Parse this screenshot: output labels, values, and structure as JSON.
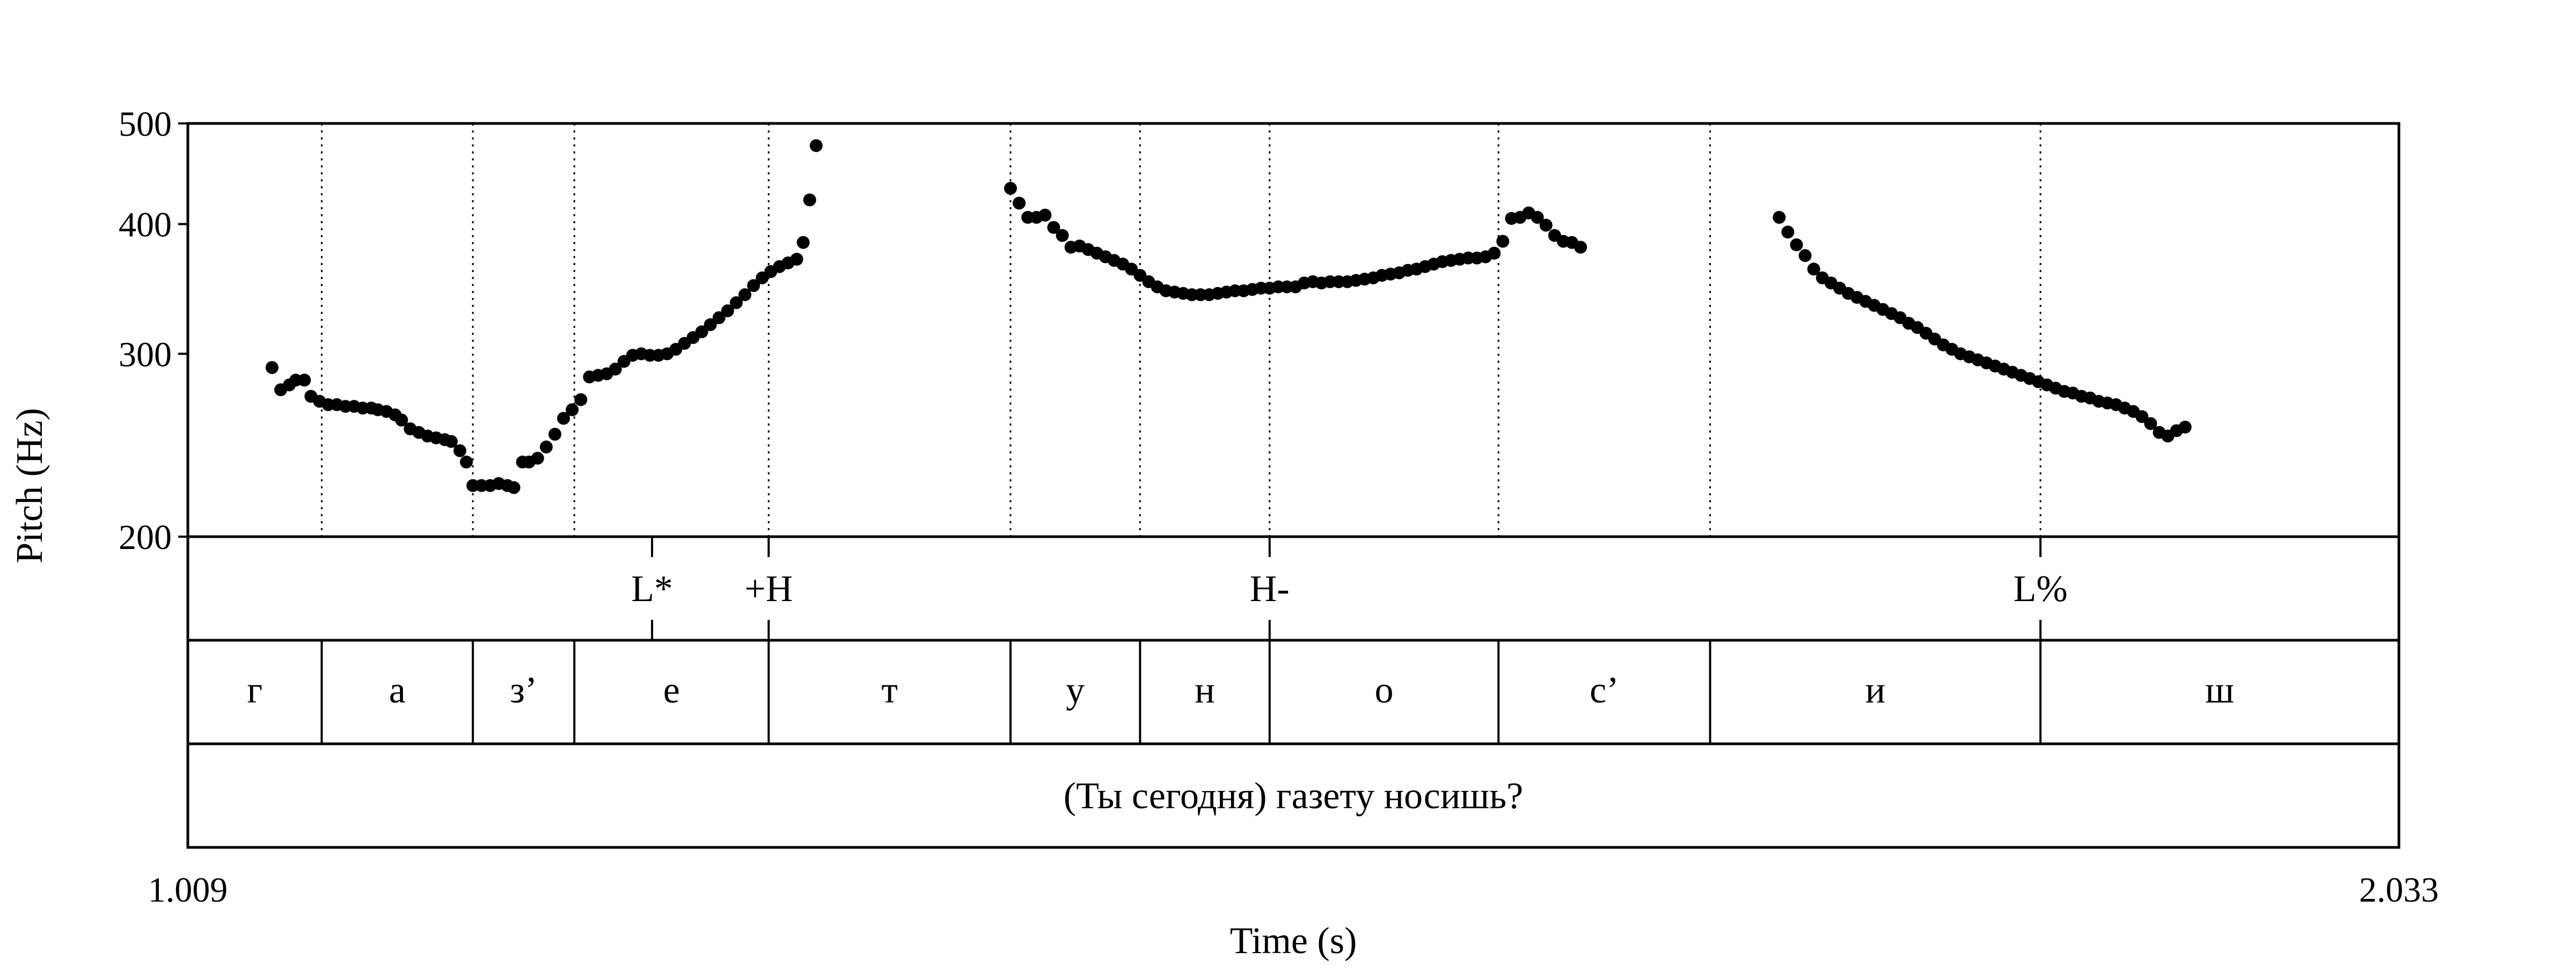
{
  "chart_data": {
    "type": "scatter",
    "x_range": [
      1.009,
      2.033
    ],
    "y_range": [
      200,
      500
    ],
    "y_scale": "log",
    "xlabel": "Time (s)",
    "ylabel": "Pitch (Hz)",
    "x_ticks": [
      "1.009",
      "2.033"
    ],
    "y_ticks": [
      500,
      400,
      300,
      200
    ],
    "y_tick_labels": [
      "500",
      "400",
      "300",
      "200"
    ],
    "grid": false,
    "pitch_points": [
      [
        1.048,
        291
      ],
      [
        1.052,
        277
      ],
      [
        1.056,
        280
      ],
      [
        1.059,
        283
      ],
      [
        1.063,
        283
      ],
      [
        1.066,
        273
      ],
      [
        1.07,
        270
      ],
      [
        1.074,
        268
      ],
      [
        1.078,
        268
      ],
      [
        1.082,
        267
      ],
      [
        1.086,
        267
      ],
      [
        1.09,
        266
      ],
      [
        1.094,
        266
      ],
      [
        1.097,
        265
      ],
      [
        1.101,
        264
      ],
      [
        1.105,
        262
      ],
      [
        1.108,
        259
      ],
      [
        1.112,
        254
      ],
      [
        1.116,
        252
      ],
      [
        1.12,
        250
      ],
      [
        1.124,
        249
      ],
      [
        1.128,
        248
      ],
      [
        1.131,
        247
      ],
      [
        1.135,
        242
      ],
      [
        1.138,
        236
      ],
      [
        1.141,
        224
      ],
      [
        1.145,
        224
      ],
      [
        1.149,
        224
      ],
      [
        1.153,
        225
      ],
      [
        1.157,
        224
      ],
      [
        1.16,
        223
      ],
      [
        1.164,
        236
      ],
      [
        1.167,
        236
      ],
      [
        1.171,
        238
      ],
      [
        1.175,
        244
      ],
      [
        1.179,
        251
      ],
      [
        1.183,
        260
      ],
      [
        1.187,
        265
      ],
      [
        1.191,
        271
      ],
      [
        1.195,
        285
      ],
      [
        1.199,
        286
      ],
      [
        1.203,
        287
      ],
      [
        1.207,
        290
      ],
      [
        1.211,
        295
      ],
      [
        1.215,
        299
      ],
      [
        1.219,
        300
      ],
      [
        1.223,
        299
      ],
      [
        1.227,
        299
      ],
      [
        1.231,
        300
      ],
      [
        1.235,
        303
      ],
      [
        1.239,
        307
      ],
      [
        1.243,
        311
      ],
      [
        1.247,
        315
      ],
      [
        1.251,
        320
      ],
      [
        1.255,
        325
      ],
      [
        1.259,
        330
      ],
      [
        1.263,
        336
      ],
      [
        1.267,
        342
      ],
      [
        1.271,
        349
      ],
      [
        1.275,
        355
      ],
      [
        1.279,
        360
      ],
      [
        1.283,
        364
      ],
      [
        1.287,
        367
      ],
      [
        1.291,
        370
      ],
      [
        1.294,
        384
      ],
      [
        1.297,
        422
      ],
      [
        1.3,
        476
      ],
      [
        1.39,
        433
      ],
      [
        1.394,
        419
      ],
      [
        1.398,
        406
      ],
      [
        1.402,
        406
      ],
      [
        1.406,
        408
      ],
      [
        1.41,
        397
      ],
      [
        1.414,
        390
      ],
      [
        1.418,
        380
      ],
      [
        1.422,
        381
      ],
      [
        1.426,
        378
      ],
      [
        1.43,
        375
      ],
      [
        1.434,
        372
      ],
      [
        1.438,
        369
      ],
      [
        1.442,
        366
      ],
      [
        1.446,
        362
      ],
      [
        1.45,
        357
      ],
      [
        1.454,
        352
      ],
      [
        1.458,
        348
      ],
      [
        1.462,
        345
      ],
      [
        1.466,
        344
      ],
      [
        1.47,
        343
      ],
      [
        1.474,
        342
      ],
      [
        1.478,
        342
      ],
      [
        1.482,
        342
      ],
      [
        1.486,
        343
      ],
      [
        1.49,
        344
      ],
      [
        1.494,
        345
      ],
      [
        1.498,
        345
      ],
      [
        1.502,
        346
      ],
      [
        1.506,
        347
      ],
      [
        1.51,
        347
      ],
      [
        1.514,
        348
      ],
      [
        1.518,
        348
      ],
      [
        1.522,
        348
      ],
      [
        1.526,
        351
      ],
      [
        1.53,
        352
      ],
      [
        1.534,
        351
      ],
      [
        1.538,
        352
      ],
      [
        1.542,
        352
      ],
      [
        1.546,
        352
      ],
      [
        1.55,
        353
      ],
      [
        1.554,
        354
      ],
      [
        1.558,
        355
      ],
      [
        1.562,
        357
      ],
      [
        1.566,
        358
      ],
      [
        1.57,
        359
      ],
      [
        1.574,
        361
      ],
      [
        1.578,
        362
      ],
      [
        1.582,
        364
      ],
      [
        1.586,
        366
      ],
      [
        1.59,
        368
      ],
      [
        1.594,
        369
      ],
      [
        1.598,
        370
      ],
      [
        1.602,
        371
      ],
      [
        1.606,
        371
      ],
      [
        1.61,
        372
      ],
      [
        1.614,
        375
      ],
      [
        1.618,
        385
      ],
      [
        1.622,
        405
      ],
      [
        1.626,
        406
      ],
      [
        1.63,
        410
      ],
      [
        1.634,
        406
      ],
      [
        1.638,
        399
      ],
      [
        1.642,
        390
      ],
      [
        1.646,
        385
      ],
      [
        1.65,
        384
      ],
      [
        1.654,
        380
      ],
      [
        1.746,
        406
      ],
      [
        1.75,
        393
      ],
      [
        1.754,
        382
      ],
      [
        1.758,
        373
      ],
      [
        1.762,
        362
      ],
      [
        1.766,
        355
      ],
      [
        1.77,
        351
      ],
      [
        1.774,
        347
      ],
      [
        1.778,
        343
      ],
      [
        1.782,
        340
      ],
      [
        1.786,
        337
      ],
      [
        1.79,
        334
      ],
      [
        1.794,
        331
      ],
      [
        1.798,
        328
      ],
      [
        1.802,
        325
      ],
      [
        1.806,
        321
      ],
      [
        1.81,
        318
      ],
      [
        1.814,
        314
      ],
      [
        1.818,
        310
      ],
      [
        1.822,
        306
      ],
      [
        1.826,
        303
      ],
      [
        1.83,
        300
      ],
      [
        1.834,
        298
      ],
      [
        1.838,
        296
      ],
      [
        1.842,
        294
      ],
      [
        1.846,
        292
      ],
      [
        1.85,
        290
      ],
      [
        1.854,
        288
      ],
      [
        1.858,
        286
      ],
      [
        1.862,
        284
      ],
      [
        1.866,
        282
      ],
      [
        1.87,
        280
      ],
      [
        1.874,
        278
      ],
      [
        1.878,
        276
      ],
      [
        1.882,
        275
      ],
      [
        1.886,
        273
      ],
      [
        1.89,
        272
      ],
      [
        1.894,
        270
      ],
      [
        1.898,
        269
      ],
      [
        1.902,
        268
      ],
      [
        1.906,
        266
      ],
      [
        1.91,
        264
      ],
      [
        1.914,
        261
      ],
      [
        1.918,
        257
      ],
      [
        1.922,
        252
      ],
      [
        1.926,
        250
      ],
      [
        1.93,
        253
      ],
      [
        1.934,
        255
      ]
    ],
    "segment_boundaries": [
      1.071,
      1.141,
      1.188,
      1.278,
      1.39,
      1.45,
      1.51,
      1.616,
      1.714,
      1.867
    ],
    "tone_tier": [
      {
        "label": "L*",
        "time": 1.224
      },
      {
        "label": "+H",
        "time": 1.278
      },
      {
        "label": "H-",
        "time": 1.51
      },
      {
        "label": "L%",
        "time": 1.867
      }
    ],
    "segment_tier": [
      {
        "label": "г",
        "start": 1.009,
        "end": 1.071
      },
      {
        "label": "а",
        "start": 1.071,
        "end": 1.141
      },
      {
        "label": "з’",
        "start": 1.141,
        "end": 1.188
      },
      {
        "label": "е",
        "start": 1.188,
        "end": 1.278
      },
      {
        "label": "т",
        "start": 1.278,
        "end": 1.39
      },
      {
        "label": "у",
        "start": 1.39,
        "end": 1.45
      },
      {
        "label": "н",
        "start": 1.45,
        "end": 1.51
      },
      {
        "label": "о",
        "start": 1.51,
        "end": 1.616
      },
      {
        "label": "с’",
        "start": 1.616,
        "end": 1.714
      },
      {
        "label": "и",
        "start": 1.714,
        "end": 1.867
      },
      {
        "label": "ш",
        "start": 1.867,
        "end": 2.033
      }
    ],
    "sentence_tier": "(Ты сегодня) газету носишь?"
  }
}
